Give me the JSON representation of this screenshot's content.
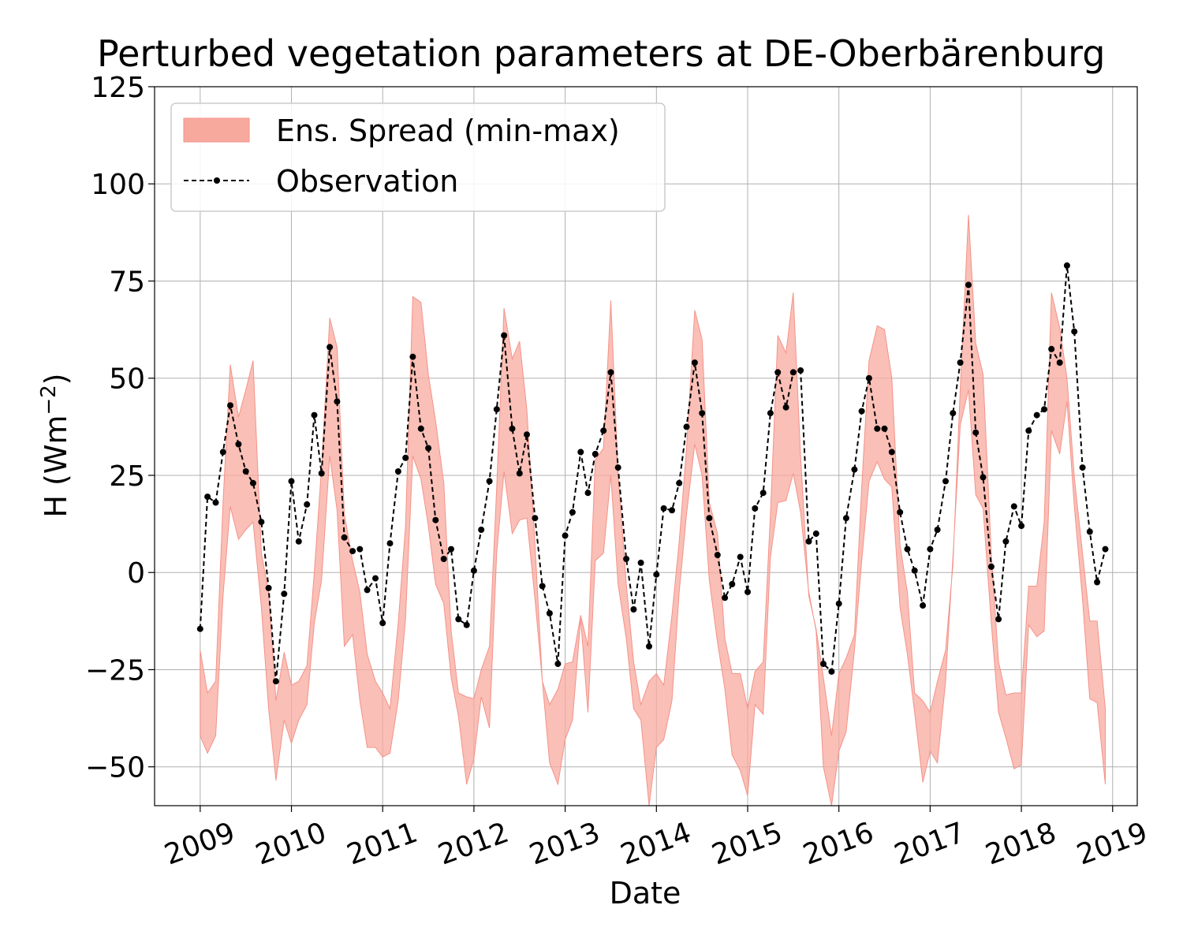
{
  "chart_data": {
    "type": "line",
    "title": "Perturbed vegetation parameters at DE-Oberbärenburg",
    "xlabel": "Date",
    "ylabel": "H  (Wm",
    "ylabel_sup": "−2",
    "ylabel_end": ")",
    "ylim": [
      -60,
      125
    ],
    "xlim": [
      2008.5,
      2019.27
    ],
    "yticks": [
      125,
      100,
      75,
      50,
      25,
      0,
      -25,
      -50
    ],
    "ytick_labels": [
      "125",
      "100",
      "75",
      "50",
      "25",
      "0",
      "−25",
      "−50"
    ],
    "xticks": [
      2009,
      2010,
      2011,
      2012,
      2013,
      2014,
      2015,
      2016,
      2017,
      2018,
      2019
    ],
    "xtick_labels": [
      "2009",
      "2010",
      "2011",
      "2012",
      "2013",
      "2014",
      "2015",
      "2016",
      "2017",
      "2018",
      "2019"
    ],
    "grid": true,
    "legend_position": "top-left",
    "legend": [
      {
        "label": "Ens. Spread (min-max)",
        "kind": "band"
      },
      {
        "label": "Observation",
        "kind": "line-marker"
      }
    ],
    "colors": {
      "band_fill": "#f8a99e",
      "band_edge": "#f4938a",
      "observation": "#000000",
      "grid": "#b0b0b0"
    },
    "x": [
      2009.0,
      2009.08,
      2009.17,
      2009.25,
      2009.33,
      2009.42,
      2009.5,
      2009.58,
      2009.67,
      2009.75,
      2009.83,
      2009.92,
      2010.0,
      2010.08,
      2010.17,
      2010.25,
      2010.33,
      2010.42,
      2010.5,
      2010.58,
      2010.67,
      2010.75,
      2010.83,
      2010.92,
      2011.0,
      2011.08,
      2011.17,
      2011.25,
      2011.33,
      2011.42,
      2011.5,
      2011.58,
      2011.67,
      2011.75,
      2011.83,
      2011.92,
      2012.0,
      2012.08,
      2012.17,
      2012.25,
      2012.33,
      2012.42,
      2012.5,
      2012.58,
      2012.67,
      2012.75,
      2012.83,
      2012.92,
      2013.0,
      2013.08,
      2013.17,
      2013.25,
      2013.33,
      2013.42,
      2013.5,
      2013.58,
      2013.67,
      2013.75,
      2013.83,
      2013.92,
      2014.0,
      2014.08,
      2014.17,
      2014.25,
      2014.33,
      2014.42,
      2014.5,
      2014.58,
      2014.67,
      2014.75,
      2014.83,
      2014.92,
      2015.0,
      2015.08,
      2015.17,
      2015.25,
      2015.33,
      2015.42,
      2015.5,
      2015.58,
      2015.67,
      2015.75,
      2015.83,
      2015.92,
      2016.0,
      2016.08,
      2016.17,
      2016.25,
      2016.33,
      2016.42,
      2016.5,
      2016.58,
      2016.67,
      2016.75,
      2016.83,
      2016.92,
      2017.0,
      2017.08,
      2017.17,
      2017.25,
      2017.33,
      2017.42,
      2017.5,
      2017.58,
      2017.67,
      2017.75,
      2017.83,
      2017.92,
      2018.0,
      2018.08,
      2018.17,
      2018.25,
      2018.33,
      2018.42,
      2018.5,
      2018.58,
      2018.67,
      2018.75,
      2018.83,
      2018.92
    ],
    "series": [
      {
        "name": "Observation",
        "values": [
          -14.5,
          19.5,
          18,
          31,
          43,
          33,
          26,
          23,
          13,
          -4,
          -28,
          -5.5,
          23.5,
          8,
          17.5,
          40.5,
          25.5,
          58,
          44,
          9,
          5.5,
          6,
          -4.5,
          -1.5,
          -13,
          7.5,
          26,
          29.5,
          55.5,
          37,
          32,
          13.5,
          3.5,
          6,
          -12,
          -13.5,
          0.5,
          11,
          23.5,
          42,
          61,
          37,
          25.5,
          35.5,
          14,
          -3.5,
          -10.5,
          -23.5,
          9.5,
          15.5,
          31,
          20.5,
          30.5,
          36.5,
          51.5,
          27,
          3.5,
          -9.5,
          2.5,
          -19,
          -0.5,
          16.5,
          16,
          23,
          37.5,
          54,
          41,
          14,
          4.5,
          -6.5,
          -3,
          4,
          -5,
          16.5,
          20.5,
          41,
          51.5,
          42.5,
          51.5,
          52,
          8,
          10,
          -23.5,
          -25.5,
          -8,
          14,
          26.5,
          41.5,
          50,
          37,
          37,
          31,
          15.5,
          6,
          0.5,
          -8.5,
          6,
          11,
          23.5,
          41,
          54,
          74,
          36,
          24.5,
          1.5,
          -12,
          8,
          17,
          12,
          36.5,
          40.5,
          42,
          57.5,
          54,
          79,
          62,
          27,
          10.5,
          -2.5,
          6
        ]
      },
      {
        "name": "Ens. Spread min",
        "values": [
          -42,
          -46.5,
          -42,
          -6,
          17,
          8.5,
          11,
          13,
          -9,
          -35,
          -53.5,
          -38,
          -44,
          -38,
          -34,
          -13,
          -2,
          30,
          16,
          -19,
          -16,
          -33,
          -45,
          -45,
          -47.5,
          -46.5,
          -33,
          -12,
          30,
          24,
          12,
          -3,
          -8,
          -27,
          -37,
          -54.5,
          -48,
          -32,
          -40,
          5,
          26,
          10,
          13.5,
          14,
          -7,
          -28,
          -49,
          -54.5,
          -43,
          -38,
          -12,
          -36,
          3,
          5,
          25,
          -3,
          -17,
          -35,
          -38,
          -60,
          -45,
          -43,
          -33,
          -5,
          15,
          33,
          25,
          -2,
          -18,
          -30,
          -47,
          -51,
          -57.5,
          -34,
          -36.5,
          4,
          18,
          18.5,
          25.5,
          15.5,
          -5,
          -15,
          -50,
          -60,
          -46,
          -41,
          -20,
          3,
          23.5,
          28.5,
          24,
          22,
          -9,
          -21,
          -36,
          -54,
          -46,
          -49,
          -28,
          4,
          38,
          47,
          20,
          16.5,
          -13,
          -36,
          -42.5,
          -50.5,
          -49.5,
          -13.5,
          -16.5,
          -15,
          36.5,
          30.5,
          44,
          17,
          -7,
          -32.5,
          -33.5,
          -54.5
        ]
      },
      {
        "name": "Ens. Spread max",
        "values": [
          -20,
          -31,
          -28,
          18,
          53.5,
          40,
          47,
          54.5,
          5,
          -5,
          -33,
          -20.5,
          -29,
          -28,
          -24,
          0,
          27,
          65.5,
          58,
          15,
          3,
          -5,
          -21,
          -28,
          -31,
          -35,
          -13,
          12,
          71,
          69.5,
          51,
          39,
          23,
          -15,
          -31,
          -32,
          -32.5,
          -25,
          -19,
          22,
          68,
          55,
          59.5,
          42,
          7,
          -28,
          -34,
          -30,
          -23.5,
          -23,
          -11,
          -19,
          29,
          32,
          70,
          25.5,
          -3,
          -23,
          -34,
          -28,
          -26,
          -29,
          -11,
          8,
          32,
          67.5,
          60,
          18,
          10,
          -17,
          -26,
          -26,
          -35,
          -25.5,
          -23,
          15,
          61,
          56.5,
          72,
          30,
          -6,
          -14.5,
          -27,
          -42,
          -26,
          -22,
          -16,
          22,
          54.5,
          63.5,
          62.5,
          50,
          7,
          -5,
          -31,
          -33,
          -36,
          -28,
          -20,
          2,
          47.5,
          92,
          59,
          51,
          5,
          -23,
          -31.5,
          -31,
          -31,
          -3.5,
          -3.5,
          13,
          72,
          63,
          50,
          24.5,
          5,
          -12.5,
          -12.5,
          -35
        ]
      }
    ]
  }
}
